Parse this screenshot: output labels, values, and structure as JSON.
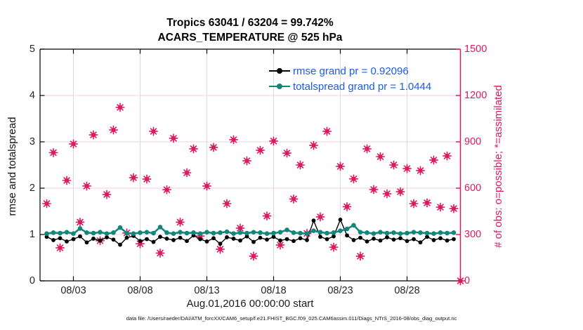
{
  "title": {
    "line1": "Tropics 63041 / 63204 = 99.742%",
    "line2": "ACARS_TEMPERATURE @ 525 hPa"
  },
  "legend": {
    "text_color": "#1B5BE8",
    "items": [
      {
        "label": "rmse grand pr = 0.92096",
        "color": "#000000"
      },
      {
        "label": "totalspread grand pr = 1.0444",
        "color": "#11877C"
      }
    ]
  },
  "footer": "data file: /Users/raeder/DAI/ATM_forcXX/CAM6_setup/f.e21.FHIST_BGC.f09_025.CAM6assim.011/Diags_NTrS_2016-08/obs_diag_output.nc",
  "colors": {
    "obs_magenta": "#DE1A5F",
    "rmse_black": "#000000",
    "totalspread_teal": "#11877C",
    "grid_vertical": "#DADADA",
    "grid_horizontal": "#F6CEDC",
    "axis_black": "#000000",
    "axis_right_magenta": "#DE1A5F",
    "tick_text": "#262626"
  },
  "chart_data": {
    "type": "line",
    "title": "Tropics 63041 / 63204 = 99.742% — ACARS_TEMPERATURE @ 525 hPa",
    "grid": true,
    "legend_position": "upper center-right, no box",
    "x_axis": {
      "label": "Aug.01,2016 00:00:00 start",
      "unit": "days since 2016-08-01 00:00 UTC",
      "tick_labels": [
        "08/03",
        "08/08",
        "08/13",
        "08/18",
        "08/23",
        "08/28"
      ],
      "tick_days": [
        2,
        7,
        12,
        17,
        22,
        27
      ],
      "range_days": [
        -0.5,
        31
      ]
    },
    "left_axis": {
      "label": "rmse and totalspread",
      "range": [
        0,
        5
      ],
      "ticks": [
        0,
        1,
        2,
        3,
        4,
        5
      ]
    },
    "right_axis": {
      "label": "# of obs: o=possible; *=assimilated",
      "range": [
        0,
        1500
      ],
      "ticks": [
        0,
        300,
        600,
        900,
        1200,
        1500
      ]
    },
    "series": [
      {
        "name": "rmse",
        "axis": "left",
        "style": "line+marker",
        "color": "#000000",
        "grand_pr": 0.92096,
        "x_start_day": 0,
        "x_step_days": 0.5,
        "values": [
          0.95,
          0.88,
          0.92,
          0.85,
          0.9,
          0.96,
          0.83,
          0.91,
          0.87,
          0.94,
          0.89,
          0.78,
          0.93,
          0.97,
          0.86,
          0.9,
          0.84,
          0.95,
          0.91,
          0.88,
          0.93,
          0.86,
          0.98,
          0.9,
          0.85,
          0.92,
          0.8,
          0.94,
          0.91,
          0.87,
          0.96,
          0.84,
          0.93,
          0.89,
          0.95,
          0.87,
          0.9,
          0.86,
          0.92,
          0.88,
          1.3,
          0.95,
          0.9,
          0.96,
          1.32,
          0.98,
          0.88,
          0.93,
          0.85,
          0.91,
          0.87,
          0.94,
          0.89,
          0.92,
          0.86,
          0.9,
          0.83,
          0.95,
          0.88,
          0.92,
          0.87,
          0.9
        ]
      },
      {
        "name": "totalspread",
        "axis": "left",
        "style": "line+marker",
        "color": "#11877C",
        "grand_pr": 1.0444,
        "x_start_day": 0,
        "x_step_days": 0.5,
        "values": [
          1.02,
          1.04,
          1.03,
          1.05,
          1.02,
          1.13,
          1.04,
          1.03,
          1.05,
          1.02,
          1.04,
          1.15,
          1.03,
          1.02,
          1.04,
          1.05,
          1.03,
          1.16,
          1.04,
          1.02,
          1.05,
          1.03,
          1.04,
          1.02,
          1.05,
          1.03,
          1.04,
          1.06,
          1.02,
          1.04,
          1.03,
          1.05,
          1.04,
          1.02,
          1.03,
          1.05,
          1.1,
          1.04,
          1.03,
          1.02,
          1.08,
          1.05,
          1.03,
          1.04,
          1.08,
          1.12,
          1.2,
          1.05,
          1.04,
          1.02,
          1.05,
          1.03,
          1.04,
          1.02,
          1.03,
          1.05,
          1.04,
          1.03,
          1.02,
          1.04,
          1.03,
          1.04
        ]
      },
      {
        "name": "observations possible/assimilated",
        "axis": "right",
        "style": "scatter",
        "marker": "circle+asterisk",
        "color": "#DE1A5F",
        "x_start_day": 0,
        "x_step_days": 0.5,
        "values": [
          500,
          830,
          214,
          650,
          886,
          380,
          614,
          945,
          260,
          559,
          977,
          1123,
          310,
          668,
          240,
          659,
          968,
          180,
          590,
          923,
          380,
          700,
          855,
          290,
          614,
          864,
          205,
          500,
          914,
          341,
          777,
          160,
          845,
          420,
          905,
          232,
          827,
          530,
          750,
          307,
          877,
          414,
          968,
          218,
          741,
          480,
          660,
          160,
          855,
          591,
          804,
          564,
          750,
          577,
          727,
          500,
          714,
          505,
          782,
          477,
          809,
          468,
          0
        ]
      }
    ]
  }
}
